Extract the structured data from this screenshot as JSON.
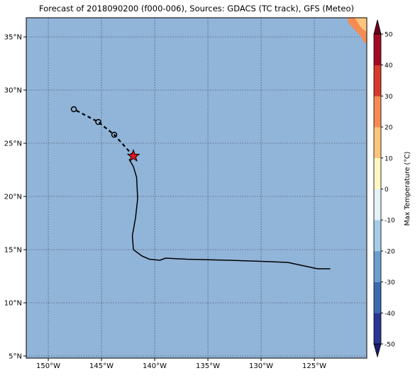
{
  "map": {
    "title": "Forecast of 2018090200 (f000-006), Sources: GDACS (TC track), GFS (Meteo)",
    "xlim": [
      -152.07,
      -120.07
    ],
    "ylim": [
      4.8,
      36.8
    ],
    "xticks": [
      {
        "value": -150,
        "label": "150°W"
      },
      {
        "value": -145,
        "label": "145°W"
      },
      {
        "value": -140,
        "label": "140°W"
      },
      {
        "value": -135,
        "label": "135°W"
      },
      {
        "value": -130,
        "label": "130°W"
      },
      {
        "value": -125,
        "label": "125°W"
      }
    ],
    "yticks": [
      {
        "value": 5,
        "label": "5°N"
      },
      {
        "value": 10,
        "label": "10°N"
      },
      {
        "value": 15,
        "label": "15°N"
      },
      {
        "value": 20,
        "label": "20°N"
      },
      {
        "value": 25,
        "label": "25°N"
      },
      {
        "value": 30,
        "label": "30°N"
      },
      {
        "value": 35,
        "label": "35°N"
      }
    ],
    "grid": true,
    "ocean_color": "#91b4d9",
    "past_track": {
      "lon": [
        -123.5,
        -124.7,
        -127.5,
        -130,
        -133,
        -137,
        -139,
        -139.5,
        -140.5,
        -141.2,
        -142,
        -142.1,
        -141.8,
        -141.6,
        -141.7,
        -142,
        -142.4
      ],
      "lat": [
        13.2,
        13.2,
        13.8,
        13.9,
        14.0,
        14.1,
        14.2,
        14.0,
        14.1,
        14.4,
        15.0,
        16.3,
        18,
        19.8,
        21.8,
        22.8,
        23.5
      ]
    },
    "forecast_track": {
      "lon": [
        -142.0,
        -143.8,
        -145.3,
        -147.6
      ],
      "lat": [
        23.8,
        25.8,
        27.0,
        28.2
      ]
    },
    "current_position": {
      "lon": -142.0,
      "lat": 23.8,
      "color": "#e8141c"
    }
  },
  "colorbar": {
    "label": "Max Temperature (°C)",
    "lim": [
      -50,
      50
    ],
    "ticks": [
      -50,
      -40,
      -30,
      -20,
      -10,
      0,
      10,
      20,
      30,
      40,
      50
    ],
    "colors": [
      "#2b3594",
      "#3a6bb0",
      "#6a9ed0",
      "#a5cde5",
      "#e2f2f6",
      "#fff6c4",
      "#fdc57c",
      "#f68b51",
      "#d73a2a",
      "#a30a26"
    ],
    "under_color": "#1c1f6e",
    "over_color": "#6d0020"
  }
}
